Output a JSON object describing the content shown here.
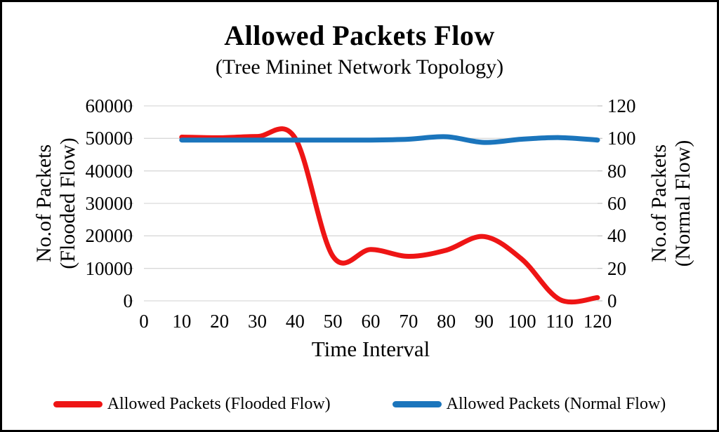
{
  "title": "Allowed Packets Flow",
  "subtitle": "(Tree Mininet Network Topology)",
  "chart_data": {
    "type": "line",
    "title": "Allowed Packets Flow",
    "subtitle": "(Tree Mininet Network Topology)",
    "xlabel": "Time Interval",
    "x": [
      10,
      20,
      30,
      40,
      50,
      60,
      70,
      80,
      90,
      100,
      110,
      120
    ],
    "x_range": [
      0,
      120
    ],
    "x_tick_labels": [
      "0",
      "10",
      "20",
      "30",
      "40",
      "50",
      "60",
      "70",
      "80",
      "90",
      "100",
      "110",
      "120"
    ],
    "grid": "horizontal",
    "gridline_color": "#d9d9d9",
    "smoothed": true,
    "legend_position": "bottom",
    "y_left": {
      "title_line1": "No.of Packets",
      "title_line2": "(Flooded Flow)",
      "range": [
        0,
        60000
      ],
      "tick_labels": [
        "60000",
        "50000",
        "40000",
        "30000",
        "20000",
        "10000",
        "0"
      ]
    },
    "y_right": {
      "title_line1": "No.of Packets",
      "title_line2": "(Normal Flow)",
      "range": [
        0,
        120
      ],
      "tick_labels": [
        "120",
        "100",
        "80",
        "60",
        "40",
        "20",
        "0"
      ]
    },
    "series": [
      {
        "name": "Allowed Packets (Flooded Flow)",
        "axis": "left",
        "color": "#ee1515",
        "values": [
          50400,
          50200,
          50600,
          50100,
          13700,
          15800,
          13700,
          15600,
          19800,
          12800,
          400,
          1000
        ]
      },
      {
        "name": "Allowed Packets (Normal Flow)",
        "axis": "right",
        "color": "#1b75bc",
        "values": [
          99,
          99,
          99,
          99,
          99,
          99,
          99.5,
          101,
          97.5,
          99.5,
          100.5,
          99
        ]
      }
    ]
  }
}
